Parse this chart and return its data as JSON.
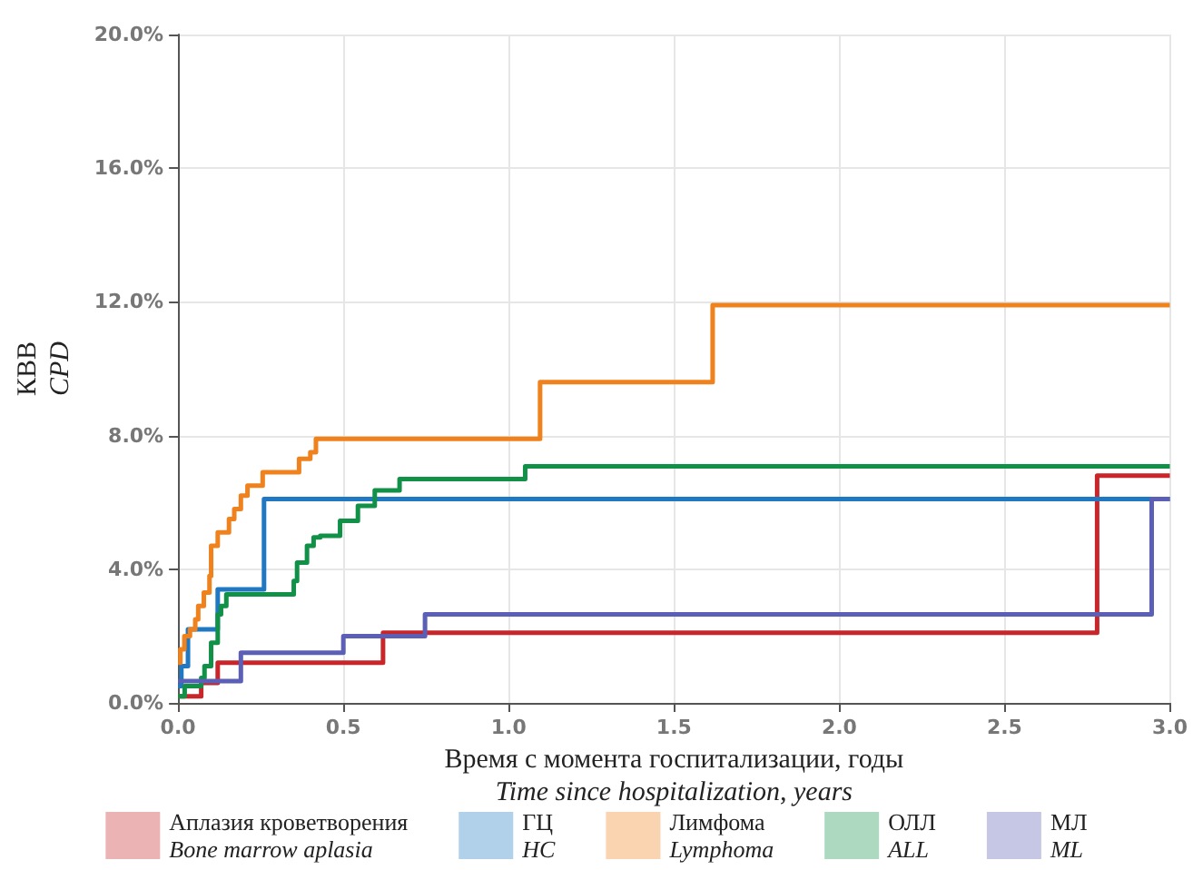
{
  "chart_data": {
    "type": "step",
    "xlabel": "Время с момента госпитализации, годы\nTime since hospitalization, years",
    "ylabel": "КВВ\nCPD",
    "xlim": [
      0,
      3
    ],
    "ylim": [
      0,
      20
    ],
    "xticks": [
      {
        "value": 0,
        "label": "0.0"
      },
      {
        "value": 0.5,
        "label": "0.5"
      },
      {
        "value": 1,
        "label": "1.0"
      },
      {
        "value": 1.5,
        "label": "1.5"
      },
      {
        "value": 2,
        "label": "2.0"
      },
      {
        "value": 2.5,
        "label": "2.5"
      },
      {
        "value": 3,
        "label": "3.0"
      }
    ],
    "yticks": [
      {
        "value": 0,
        "label": "0.0%"
      },
      {
        "value": 4,
        "label": "4.0%"
      },
      {
        "value": 8,
        "label": "8.0%"
      },
      {
        "value": 12,
        "label": "12.0%"
      },
      {
        "value": 16,
        "label": "16.0%"
      },
      {
        "value": 20,
        "label": "20.0%"
      }
    ],
    "grid": true,
    "legend": "bottom",
    "marker": "none",
    "line_style": "solid",
    "series": [
      {
        "name": "Аплазия кроветворения\nBone marrow aplasia",
        "color": "#c8262b",
        "x": [
          0,
          0.07,
          0.12,
          0.62,
          2.78,
          3
        ],
        "values": [
          0.2,
          0.6,
          1.2,
          2.1,
          6.8,
          6.8
        ]
      },
      {
        "name": "ГЦ\nHC",
        "color": "#1f78c1",
        "x": [
          0,
          0.01,
          0.03,
          0.12,
          0.26,
          3
        ],
        "values": [
          0.5,
          1.1,
          2.2,
          3.4,
          6.1,
          6.1
        ]
      },
      {
        "name": "Лимфома\nLymphoma",
        "color": "#f0821e",
        "x": [
          0,
          0.007,
          0.019,
          0.036,
          0.052,
          0.061,
          0.078,
          0.095,
          0.1,
          0.12,
          0.154,
          0.17,
          0.19,
          0.21,
          0.256,
          0.366,
          0.4,
          0.417,
          1.095,
          1.617,
          3
        ],
        "values": [
          1.2,
          1.6,
          2.0,
          2.2,
          2.5,
          2.9,
          3.3,
          3.8,
          4.7,
          5.1,
          5.5,
          5.8,
          6.2,
          6.5,
          6.9,
          7.3,
          7.5,
          7.9,
          9.6,
          11.9,
          11.9
        ]
      },
      {
        "name": "ОЛЛ\nALL",
        "color": "#119148",
        "x": [
          0,
          0.02,
          0.07,
          0.08,
          0.1,
          0.12,
          0.13,
          0.146,
          0.35,
          0.36,
          0.39,
          0.41,
          0.43,
          0.49,
          0.544,
          0.595,
          0.67,
          1.05,
          3
        ],
        "values": [
          0.2,
          0.5,
          0.75,
          1.1,
          1.8,
          2.65,
          2.9,
          3.25,
          3.65,
          4.2,
          4.7,
          4.95,
          5.0,
          5.45,
          5.9,
          6.36,
          6.7,
          7.08,
          7.08
        ]
      },
      {
        "name": "МЛ\nML",
        "color": "#5b5fb5",
        "x": [
          0,
          0.19,
          0.5,
          0.747,
          2.945,
          3
        ],
        "values": [
          0.65,
          1.5,
          2.0,
          2.65,
          6.1,
          6.1
        ]
      }
    ]
  }
}
